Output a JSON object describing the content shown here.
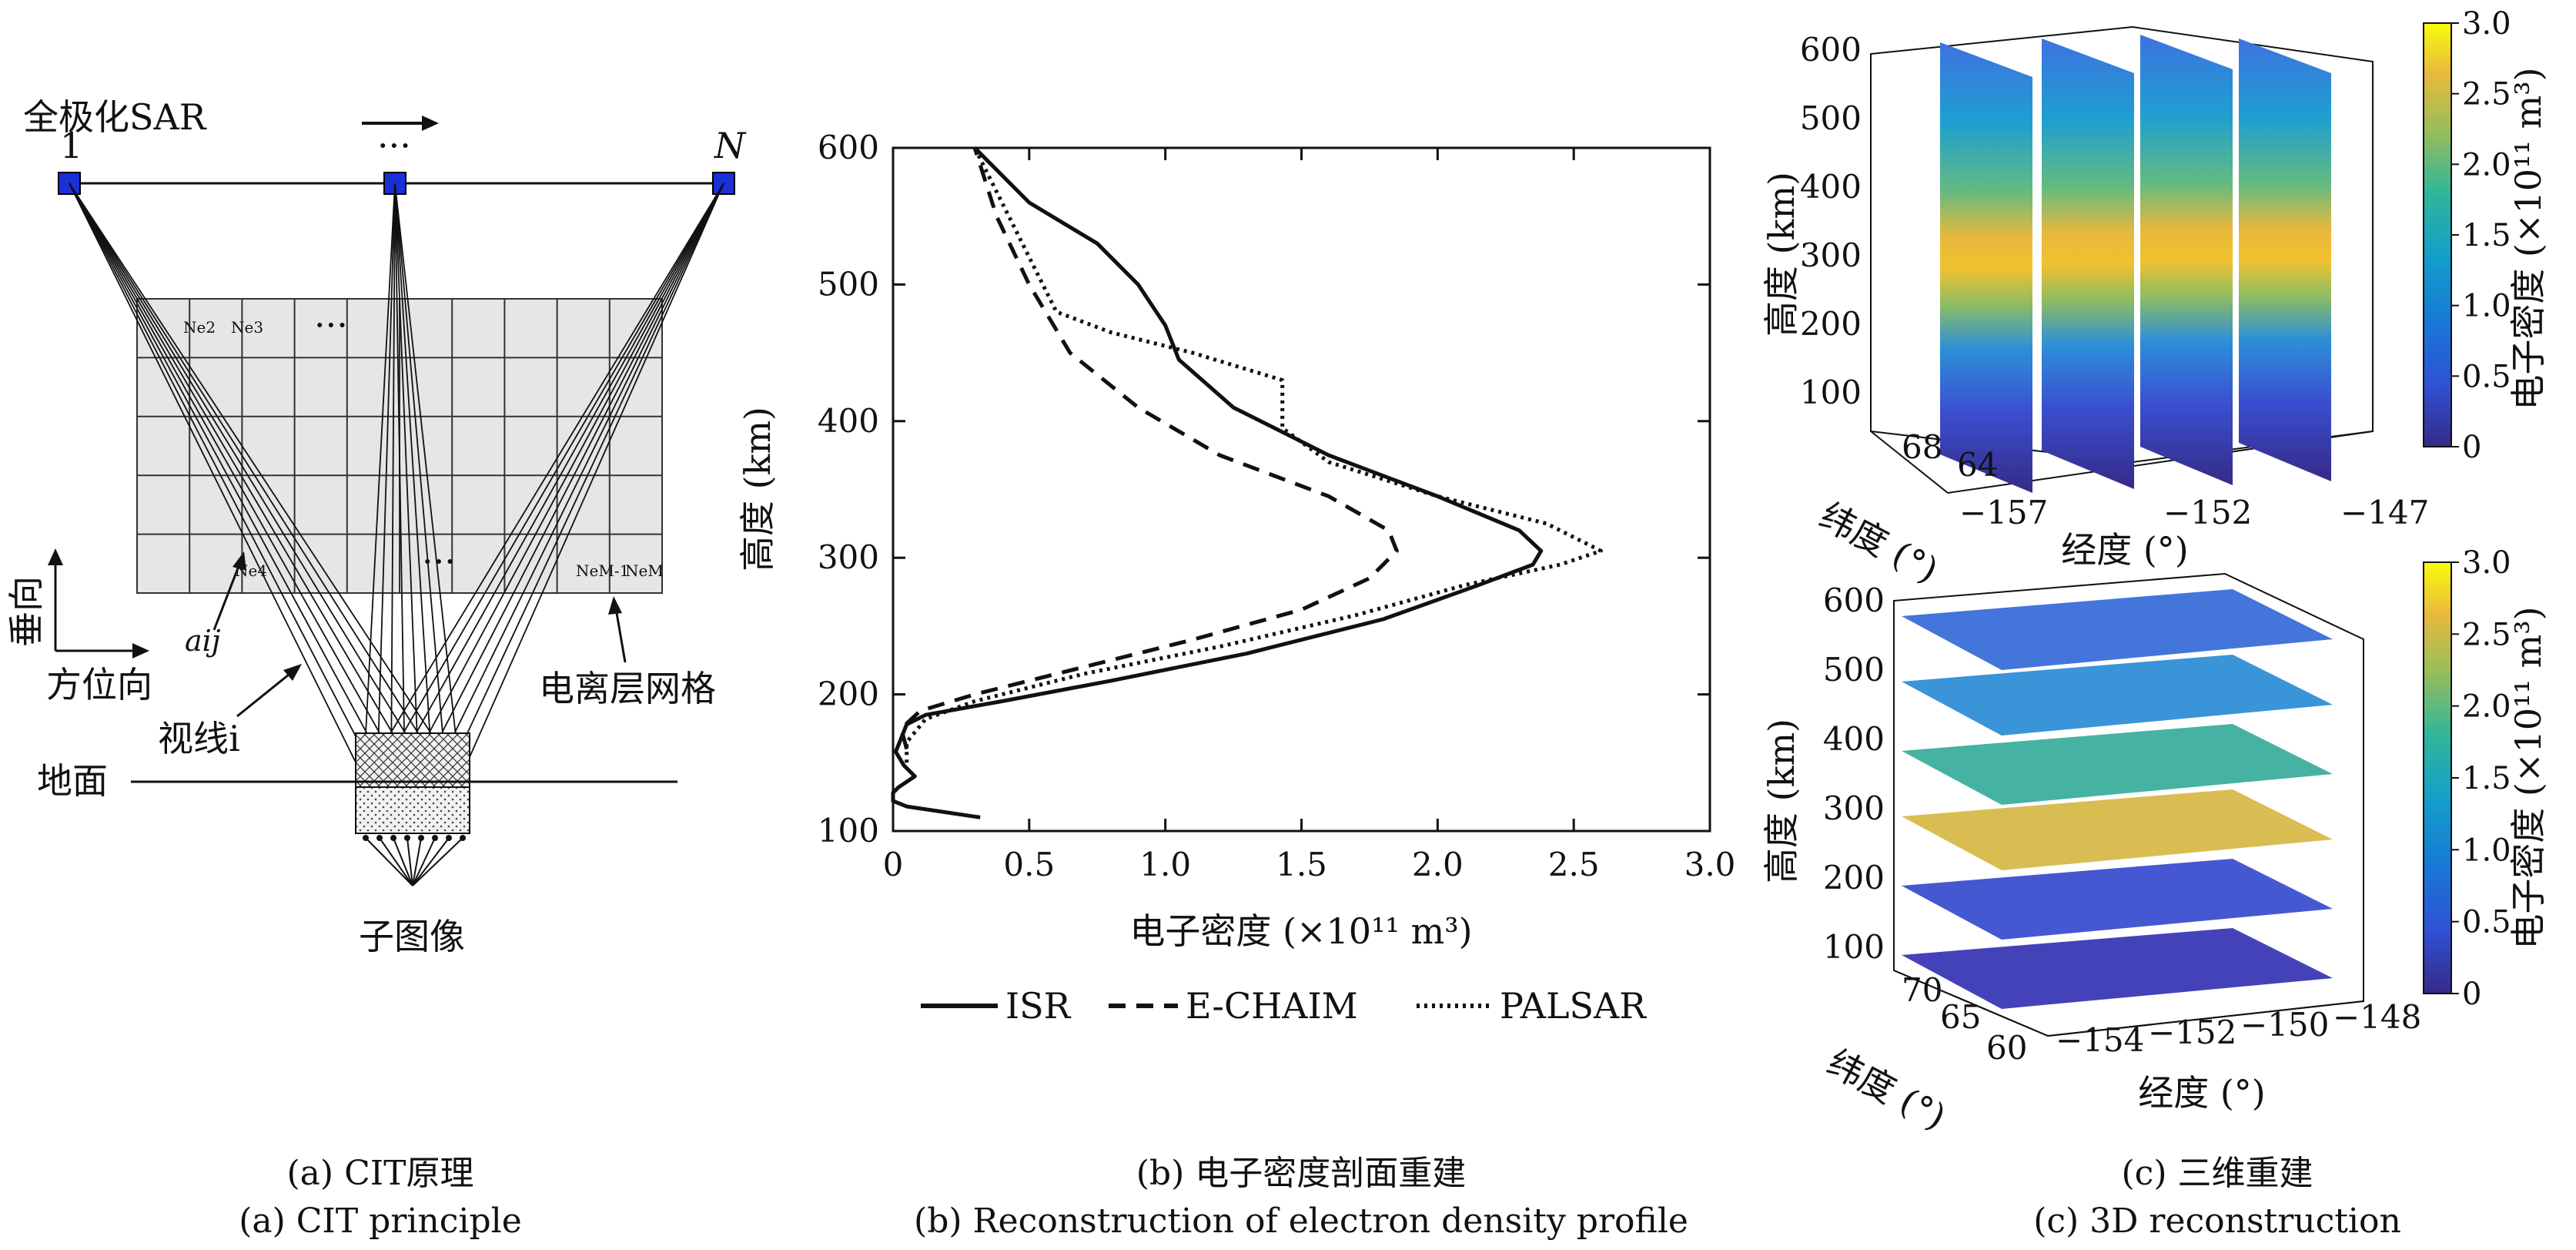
{
  "panel_a": {
    "sar_label": "全极化SAR",
    "pos_first": "1",
    "pos_mid": "···",
    "pos_last": "N",
    "grid_ellipsis_top": "···",
    "grid_ellipsis_bottom": "···",
    "cell_labels": [
      "Ne2",
      "Ne3",
      "Ne4",
      "NeM-1",
      "NeM"
    ],
    "vertical_label": "垂向",
    "azimuth_label": "方位向",
    "aij_label": "aij",
    "los_label": "视线i",
    "iono_grid_label": "电离层网格",
    "ground_label": "地面",
    "subimage_label": "子图像",
    "caption_cn": "(a) CIT原理",
    "caption_en": "(a) CIT principle"
  },
  "panel_b": {
    "caption_cn": "(b) 电子密度剖面重建",
    "caption_en": "(b) Reconstruction of electron density profile",
    "legend": [
      "ISR",
      "E-CHAIM",
      "PALSAR"
    ]
  },
  "panel_c": {
    "caption_cn": "(c) 三维重建",
    "caption_en": "(c) 3D reconstruction",
    "top": {
      "zlabel": "高度 (km)",
      "ylabel": "纬度 (°)",
      "xlabel": "经度 (°)",
      "z_ticks": [
        "600",
        "500",
        "400",
        "300",
        "200",
        "100"
      ],
      "y_ticks": [
        "68",
        "64"
      ],
      "x_ticks": [
        "−157",
        "−152",
        "−147"
      ],
      "cb_label": "电子密度 (×10¹¹ m³)",
      "cb_ticks": [
        "3.0",
        "2.5",
        "2.0",
        "1.5",
        "1.0",
        "0.5",
        "0"
      ]
    },
    "bottom": {
      "zlabel": "高度 (km)",
      "ylabel": "纬度 (°)",
      "xlabel": "经度 (°)",
      "z_ticks": [
        "600",
        "500",
        "400",
        "300",
        "200",
        "100"
      ],
      "y_ticks": [
        "70",
        "65",
        "60"
      ],
      "x_ticks": [
        "−154",
        "−152",
        "−150",
        "−148"
      ],
      "cb_label": "电子密度 (×10¹¹ m³)",
      "cb_ticks": [
        "3.0",
        "2.5",
        "2.0",
        "1.5",
        "1.0",
        "0.5",
        "0"
      ]
    }
  },
  "chart_data": {
    "type": "line",
    "xlabel": "电子密度 (×10¹¹ m³)",
    "ylabel": "高度 (km)",
    "xlim": [
      0,
      3.0
    ],
    "ylim": [
      100,
      600
    ],
    "x_ticks": [
      "0",
      "0.5",
      "1.0",
      "1.5",
      "2.0",
      "2.5",
      "3.0"
    ],
    "y_ticks": [
      "100",
      "200",
      "300",
      "400",
      "500",
      "600"
    ],
    "legend_position": "bottom",
    "series": [
      {
        "name": "ISR",
        "style": "solid",
        "color": "#111111",
        "points": [
          [
            0.32,
            110
          ],
          [
            0.05,
            118
          ],
          [
            0.0,
            122
          ],
          [
            0.0,
            128
          ],
          [
            0.02,
            132
          ],
          [
            0.08,
            140
          ],
          [
            0.04,
            148
          ],
          [
            0.01,
            158
          ],
          [
            0.03,
            168
          ],
          [
            0.05,
            178
          ],
          [
            0.12,
            185
          ],
          [
            0.4,
            195
          ],
          [
            0.8,
            210
          ],
          [
            1.3,
            230
          ],
          [
            1.8,
            255
          ],
          [
            2.15,
            280
          ],
          [
            2.35,
            295
          ],
          [
            2.38,
            305
          ],
          [
            2.3,
            320
          ],
          [
            2.0,
            345
          ],
          [
            1.6,
            375
          ],
          [
            1.25,
            410
          ],
          [
            1.05,
            445
          ],
          [
            1.0,
            470
          ],
          [
            0.9,
            500
          ],
          [
            0.75,
            530
          ],
          [
            0.5,
            560
          ],
          [
            0.3,
            600
          ]
        ]
      },
      {
        "name": "E-CHAIM",
        "style": "dashed",
        "color": "#111111",
        "points": [
          [
            0.05,
            160
          ],
          [
            0.03,
            175
          ],
          [
            0.1,
            188
          ],
          [
            0.3,
            200
          ],
          [
            0.7,
            220
          ],
          [
            1.1,
            240
          ],
          [
            1.5,
            262
          ],
          [
            1.75,
            285
          ],
          [
            1.85,
            305
          ],
          [
            1.82,
            320
          ],
          [
            1.6,
            345
          ],
          [
            1.2,
            375
          ],
          [
            0.9,
            410
          ],
          [
            0.65,
            450
          ],
          [
            0.5,
            500
          ],
          [
            0.38,
            550
          ],
          [
            0.3,
            600
          ]
        ]
      },
      {
        "name": "PALSAR",
        "style": "dotted",
        "color": "#111111",
        "points": [
          [
            0.05,
            150
          ],
          [
            0.05,
            165
          ],
          [
            0.12,
            182
          ],
          [
            0.3,
            195
          ],
          [
            0.7,
            215
          ],
          [
            1.2,
            235
          ],
          [
            1.7,
            258
          ],
          [
            2.1,
            280
          ],
          [
            2.45,
            295
          ],
          [
            2.6,
            305
          ],
          [
            2.4,
            325
          ],
          [
            2.0,
            345
          ],
          [
            1.6,
            370
          ],
          [
            1.43,
            395
          ],
          [
            1.43,
            430
          ],
          [
            1.1,
            450
          ],
          [
            0.8,
            465
          ],
          [
            0.6,
            480
          ],
          [
            0.5,
            520
          ],
          [
            0.4,
            560
          ],
          [
            0.3,
            600
          ]
        ]
      }
    ]
  }
}
